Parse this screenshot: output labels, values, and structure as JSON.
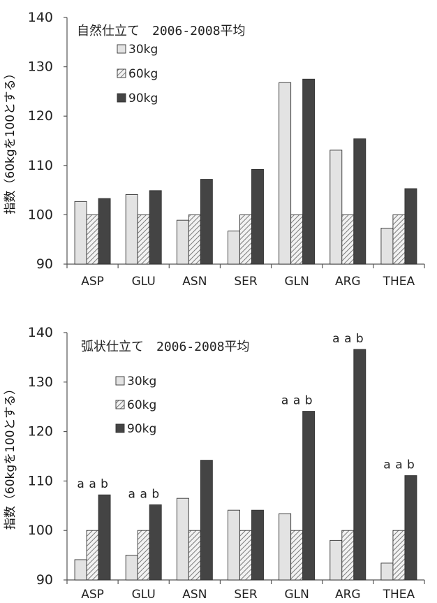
{
  "chart_data": [
    {
      "type": "bar",
      "title": "自然仕立て　2006-2008平均",
      "ylabel": "指数（60kgを100とする）",
      "xlabel": "",
      "ylim": [
        90,
        140
      ],
      "yticks": [
        90,
        100,
        110,
        120,
        130,
        140
      ],
      "grid": false,
      "legend_position": "top-left",
      "categories": [
        "ASP",
        "GLU",
        "ASN",
        "SER",
        "GLN",
        "ARG",
        "THEA"
      ],
      "series": [
        {
          "name": "30kg",
          "values": [
            102.7,
            104.1,
            98.9,
            96.7,
            126.8,
            113.1,
            97.3
          ],
          "color": "#e3e3e3",
          "pattern": "solid"
        },
        {
          "name": "60kg",
          "values": [
            100,
            100,
            100,
            100,
            100,
            100,
            100
          ],
          "color": "#bdbdbd",
          "pattern": "hatch"
        },
        {
          "name": "90kg",
          "values": [
            103.3,
            104.9,
            107.2,
            109.2,
            127.5,
            115.4,
            105.3
          ],
          "color": "#444444",
          "pattern": "solid"
        }
      ],
      "annotations": []
    },
    {
      "type": "bar",
      "title": "弧状仕立て　2006-2008平均",
      "ylabel": "指数（60kgを100とする）",
      "xlabel": "",
      "ylim": [
        90,
        140
      ],
      "yticks": [
        90,
        100,
        110,
        120,
        130,
        140
      ],
      "grid": false,
      "legend_position": "top-left",
      "categories": [
        "ASP",
        "GLU",
        "ASN",
        "SER",
        "GLN",
        "ARG",
        "THEA"
      ],
      "series": [
        {
          "name": "30kg",
          "values": [
            94.1,
            95.0,
            106.5,
            104.1,
            103.4,
            98.0,
            93.4
          ],
          "color": "#e3e3e3",
          "pattern": "solid"
        },
        {
          "name": "60kg",
          "values": [
            100,
            100,
            100,
            100,
            100,
            100,
            100
          ],
          "color": "#bdbdbd",
          "pattern": "hatch"
        },
        {
          "name": "90kg",
          "values": [
            107.2,
            105.2,
            114.2,
            104.1,
            124.1,
            136.6,
            111.1
          ],
          "color": "#444444",
          "pattern": "solid"
        }
      ],
      "annotations": [
        {
          "category": "ASP",
          "labels": [
            "a",
            "a",
            "b"
          ]
        },
        {
          "category": "GLU",
          "labels": [
            "a",
            "a",
            "b"
          ]
        },
        {
          "category": "GLN",
          "labels": [
            "a",
            "a",
            "b"
          ]
        },
        {
          "category": "ARG",
          "labels": [
            "a",
            "a",
            "b"
          ]
        },
        {
          "category": "THEA",
          "labels": [
            "a",
            "a",
            "b"
          ]
        }
      ]
    }
  ]
}
